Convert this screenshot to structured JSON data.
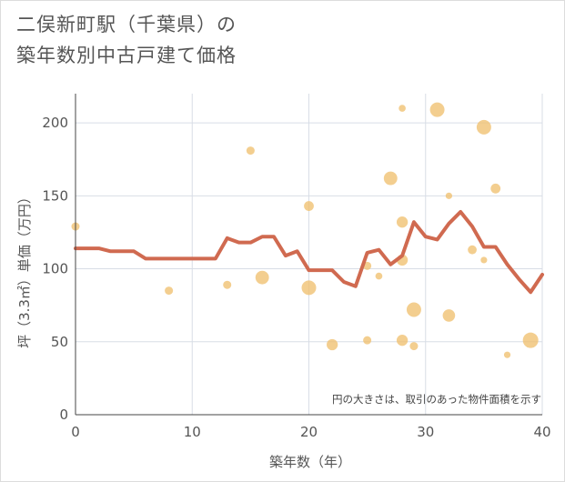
{
  "chart_data": {
    "type": "scatter",
    "title_line1": "二俣新町駅（千葉県）の",
    "title_line2": "築年数別中古戸建て価格",
    "xlabel": "築年数（年）",
    "ylabel": "坪（3.3㎡）単価（万円）",
    "note": "円の大きさは、取引のあった物件面積を示す",
    "xlim": [
      0,
      40
    ],
    "ylim": [
      0,
      220
    ],
    "xticks": [
      0,
      10,
      20,
      30,
      40
    ],
    "yticks": [
      0,
      50,
      100,
      150,
      200
    ],
    "colors": {
      "bubble": "#f0c070",
      "line": "#d06a50",
      "grid": "#d8dde6",
      "text": "#555555"
    },
    "bubbles": [
      {
        "x": 0,
        "y": 129,
        "r": 1
      },
      {
        "x": 8,
        "y": 85,
        "r": 1
      },
      {
        "x": 13,
        "y": 89,
        "r": 1
      },
      {
        "x": 15,
        "y": 181,
        "r": 1
      },
      {
        "x": 16,
        "y": 94,
        "r": 3
      },
      {
        "x": 20,
        "y": 87,
        "r": 3.5
      },
      {
        "x": 20,
        "y": 143,
        "r": 1.5
      },
      {
        "x": 22,
        "y": 48,
        "r": 2
      },
      {
        "x": 25,
        "y": 51,
        "r": 1
      },
      {
        "x": 25,
        "y": 102,
        "r": 1
      },
      {
        "x": 26,
        "y": 95,
        "r": 0.7
      },
      {
        "x": 27,
        "y": 162,
        "r": 3
      },
      {
        "x": 28,
        "y": 132,
        "r": 2
      },
      {
        "x": 28,
        "y": 106,
        "r": 2
      },
      {
        "x": 28,
        "y": 51,
        "r": 2
      },
      {
        "x": 28,
        "y": 210,
        "r": 0.7
      },
      {
        "x": 29,
        "y": 72,
        "r": 3.5
      },
      {
        "x": 29,
        "y": 47,
        "r": 1
      },
      {
        "x": 31,
        "y": 209,
        "r": 3.5
      },
      {
        "x": 32,
        "y": 68,
        "r": 2.5
      },
      {
        "x": 32,
        "y": 150,
        "r": 0.6
      },
      {
        "x": 34,
        "y": 113,
        "r": 1.2
      },
      {
        "x": 35,
        "y": 197,
        "r": 3.5
      },
      {
        "x": 35,
        "y": 106,
        "r": 0.6
      },
      {
        "x": 36,
        "y": 155,
        "r": 1.5
      },
      {
        "x": 37,
        "y": 41,
        "r": 0.6
      },
      {
        "x": 39,
        "y": 51,
        "r": 4
      }
    ],
    "line": {
      "x": [
        0,
        1,
        2,
        3,
        4,
        5,
        6,
        7,
        8,
        9,
        10,
        11,
        12,
        13,
        14,
        15,
        16,
        17,
        18,
        19,
        20,
        21,
        22,
        23,
        24,
        25,
        26,
        27,
        28,
        29,
        30,
        31,
        32,
        33,
        34,
        35,
        36,
        37,
        38,
        39,
        40
      ],
      "y": [
        114,
        114,
        114,
        112,
        112,
        112,
        107,
        107,
        107,
        107,
        107,
        107,
        107,
        121,
        118,
        118,
        122,
        122,
        109,
        112,
        99,
        99,
        99,
        91,
        88,
        111,
        113,
        103,
        109,
        132,
        122,
        120,
        131,
        139,
        129,
        115,
        115,
        103,
        93,
        84,
        96
      ]
    }
  }
}
